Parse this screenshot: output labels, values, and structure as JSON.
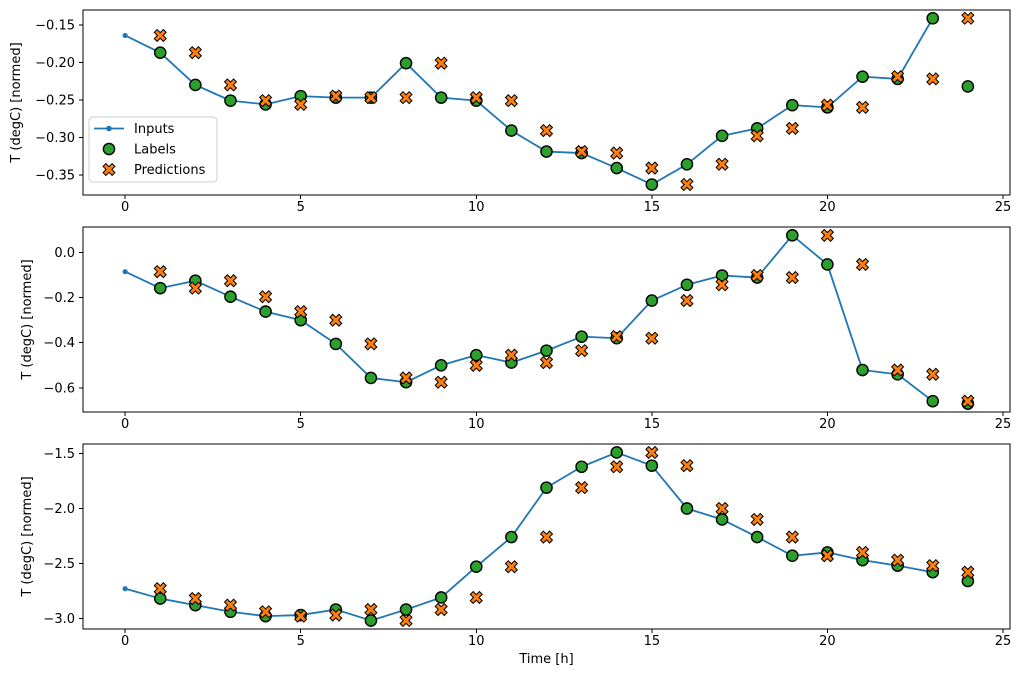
{
  "figure": {
    "background": "#ffffff",
    "xlabel": "Time [h]",
    "ylabel": "T (degC) [normed]",
    "legend": {
      "entries": [
        "Inputs",
        "Labels",
        "Predictions"
      ],
      "position": "upper-left-of-first-subplot"
    }
  },
  "colors": {
    "inputs_line": "#1f77b4",
    "labels_marker": "#2ca02c",
    "predictions_marker": "#ff7f0e",
    "marker_edge": "#000000",
    "legend_border": "#cccccc",
    "axes": "#000000"
  },
  "chart_data": [
    {
      "type": "line",
      "title": "",
      "ylabel": "T (degC) [normed]",
      "xlabel": "",
      "grid": false,
      "legend": true,
      "xlim": [
        -1.2,
        25.2
      ],
      "ylim": [
        -0.377,
        -0.13
      ],
      "xticks": [
        0,
        5,
        10,
        15,
        20,
        25
      ],
      "yticks": [
        -0.15,
        -0.2,
        -0.25,
        -0.3,
        -0.35
      ],
      "ytick_labels": [
        "−0.15",
        "−0.20",
        "−0.25",
        "−0.30",
        "−0.35"
      ],
      "series": [
        {
          "name": "Inputs",
          "kind": "line",
          "marker": "dot",
          "color": "#1f77b4",
          "edge": "#1f77b4",
          "x": [
            0,
            1,
            2,
            3,
            4,
            5,
            6,
            7,
            8,
            9,
            10,
            11,
            12,
            13,
            14,
            15,
            16,
            17,
            18,
            19,
            20,
            21,
            22,
            23
          ],
          "y": [
            -0.164,
            -0.187,
            -0.23,
            -0.251,
            -0.256,
            -0.245,
            -0.247,
            -0.247,
            -0.201,
            -0.247,
            -0.251,
            -0.291,
            -0.319,
            -0.321,
            -0.341,
            -0.363,
            -0.336,
            -0.298,
            -0.288,
            -0.257,
            -0.26,
            -0.219,
            -0.222,
            -0.141
          ]
        },
        {
          "name": "Labels",
          "kind": "scatter",
          "marker": "circle",
          "color": "#2ca02c",
          "edge": "#000000",
          "x": [
            1,
            2,
            3,
            4,
            5,
            6,
            7,
            8,
            9,
            10,
            11,
            12,
            13,
            14,
            15,
            16,
            17,
            18,
            19,
            20,
            21,
            22,
            23,
            24
          ],
          "y": [
            -0.187,
            -0.23,
            -0.251,
            -0.256,
            -0.245,
            -0.247,
            -0.247,
            -0.201,
            -0.247,
            -0.251,
            -0.291,
            -0.319,
            -0.321,
            -0.341,
            -0.363,
            -0.336,
            -0.298,
            -0.288,
            -0.257,
            -0.26,
            -0.219,
            -0.222,
            -0.141,
            -0.232
          ]
        },
        {
          "name": "Predictions",
          "kind": "scatter",
          "marker": "X",
          "color": "#ff7f0e",
          "edge": "#000000",
          "x": [
            1,
            2,
            3,
            4,
            5,
            6,
            7,
            8,
            9,
            10,
            11,
            12,
            13,
            14,
            15,
            16,
            17,
            18,
            19,
            20,
            21,
            22,
            23,
            24
          ],
          "y": [
            -0.164,
            -0.187,
            -0.23,
            -0.251,
            -0.256,
            -0.245,
            -0.247,
            -0.247,
            -0.201,
            -0.247,
            -0.251,
            -0.291,
            -0.319,
            -0.321,
            -0.341,
            -0.363,
            -0.336,
            -0.298,
            -0.288,
            -0.257,
            -0.26,
            -0.219,
            -0.222,
            -0.141
          ]
        }
      ]
    },
    {
      "type": "line",
      "title": "",
      "ylabel": "T (degC) [normed]",
      "xlabel": "",
      "grid": false,
      "legend": false,
      "xlim": [
        -1.2,
        25.2
      ],
      "ylim": [
        -0.707,
        0.113
      ],
      "xticks": [
        0,
        5,
        10,
        15,
        20,
        25
      ],
      "yticks": [
        0.0,
        -0.2,
        -0.4,
        -0.6
      ],
      "ytick_labels": [
        "0.0",
        "−0.2",
        "−0.4",
        "−0.6"
      ],
      "series": [
        {
          "name": "Inputs",
          "kind": "line",
          "marker": "dot",
          "color": "#1f77b4",
          "edge": "#1f77b4",
          "x": [
            0,
            1,
            2,
            3,
            4,
            5,
            6,
            7,
            8,
            9,
            10,
            11,
            12,
            13,
            14,
            15,
            16,
            17,
            18,
            19,
            20,
            21,
            22,
            23
          ],
          "y": [
            -0.085,
            -0.158,
            -0.125,
            -0.196,
            -0.262,
            -0.3,
            -0.405,
            -0.556,
            -0.575,
            -0.5,
            -0.455,
            -0.488,
            -0.435,
            -0.373,
            -0.38,
            -0.213,
            -0.143,
            -0.102,
            -0.111,
            0.076,
            -0.053,
            -0.521,
            -0.54,
            -0.659
          ]
        },
        {
          "name": "Labels",
          "kind": "scatter",
          "marker": "circle",
          "color": "#2ca02c",
          "edge": "#000000",
          "x": [
            1,
            2,
            3,
            4,
            5,
            6,
            7,
            8,
            9,
            10,
            11,
            12,
            13,
            14,
            15,
            16,
            17,
            18,
            19,
            20,
            21,
            22,
            23,
            24
          ],
          "y": [
            -0.158,
            -0.125,
            -0.196,
            -0.262,
            -0.3,
            -0.405,
            -0.556,
            -0.575,
            -0.5,
            -0.455,
            -0.488,
            -0.435,
            -0.373,
            -0.38,
            -0.213,
            -0.143,
            -0.102,
            -0.111,
            0.076,
            -0.053,
            -0.521,
            -0.54,
            -0.659,
            -0.67
          ]
        },
        {
          "name": "Predictions",
          "kind": "scatter",
          "marker": "X",
          "color": "#ff7f0e",
          "edge": "#000000",
          "x": [
            1,
            2,
            3,
            4,
            5,
            6,
            7,
            8,
            9,
            10,
            11,
            12,
            13,
            14,
            15,
            16,
            17,
            18,
            19,
            20,
            21,
            22,
            23,
            24
          ],
          "y": [
            -0.085,
            -0.158,
            -0.125,
            -0.196,
            -0.262,
            -0.3,
            -0.405,
            -0.556,
            -0.575,
            -0.5,
            -0.455,
            -0.488,
            -0.435,
            -0.373,
            -0.38,
            -0.213,
            -0.143,
            -0.102,
            -0.111,
            0.076,
            -0.053,
            -0.521,
            -0.54,
            -0.659
          ]
        }
      ]
    },
    {
      "type": "line",
      "title": "",
      "ylabel": "T (degC) [normed]",
      "xlabel": "Time [h]",
      "grid": false,
      "legend": false,
      "xlim": [
        -1.2,
        25.2
      ],
      "ylim": [
        -3.097,
        -1.413
      ],
      "xticks": [
        0,
        5,
        10,
        15,
        20,
        25
      ],
      "yticks": [
        -1.5,
        -2.0,
        -2.5,
        -3.0
      ],
      "ytick_labels": [
        "−1.5",
        "−2.0",
        "−2.5",
        "−3.0"
      ],
      "series": [
        {
          "name": "Inputs",
          "kind": "line",
          "marker": "dot",
          "color": "#1f77b4",
          "edge": "#1f77b4",
          "x": [
            0,
            1,
            2,
            3,
            4,
            5,
            6,
            7,
            8,
            9,
            10,
            11,
            12,
            13,
            14,
            15,
            16,
            17,
            18,
            19,
            20,
            21,
            22,
            23
          ],
          "y": [
            -2.73,
            -2.82,
            -2.88,
            -2.94,
            -2.98,
            -2.97,
            -2.92,
            -3.02,
            -2.92,
            -2.81,
            -2.53,
            -2.26,
            -1.81,
            -1.62,
            -1.49,
            -1.61,
            -2.0,
            -2.1,
            -2.26,
            -2.43,
            -2.4,
            -2.47,
            -2.52,
            -2.58
          ]
        },
        {
          "name": "Labels",
          "kind": "scatter",
          "marker": "circle",
          "color": "#2ca02c",
          "edge": "#000000",
          "x": [
            1,
            2,
            3,
            4,
            5,
            6,
            7,
            8,
            9,
            10,
            11,
            12,
            13,
            14,
            15,
            16,
            17,
            18,
            19,
            20,
            21,
            22,
            23,
            24
          ],
          "y": [
            -2.82,
            -2.88,
            -2.94,
            -2.98,
            -2.97,
            -2.92,
            -3.02,
            -2.92,
            -2.81,
            -2.53,
            -2.26,
            -1.81,
            -1.62,
            -1.49,
            -1.61,
            -2.0,
            -2.1,
            -2.26,
            -2.43,
            -2.4,
            -2.47,
            -2.52,
            -2.58,
            -2.66
          ]
        },
        {
          "name": "Predictions",
          "kind": "scatter",
          "marker": "X",
          "color": "#ff7f0e",
          "edge": "#000000",
          "x": [
            1,
            2,
            3,
            4,
            5,
            6,
            7,
            8,
            9,
            10,
            11,
            12,
            13,
            14,
            15,
            16,
            17,
            18,
            19,
            20,
            21,
            22,
            23,
            24
          ],
          "y": [
            -2.73,
            -2.82,
            -2.88,
            -2.94,
            -2.98,
            -2.97,
            -2.92,
            -3.02,
            -2.92,
            -2.81,
            -2.53,
            -2.26,
            -1.81,
            -1.62,
            -1.49,
            -1.61,
            -2.0,
            -2.1,
            -2.26,
            -2.43,
            -2.4,
            -2.47,
            -2.52,
            -2.58
          ]
        }
      ]
    }
  ]
}
